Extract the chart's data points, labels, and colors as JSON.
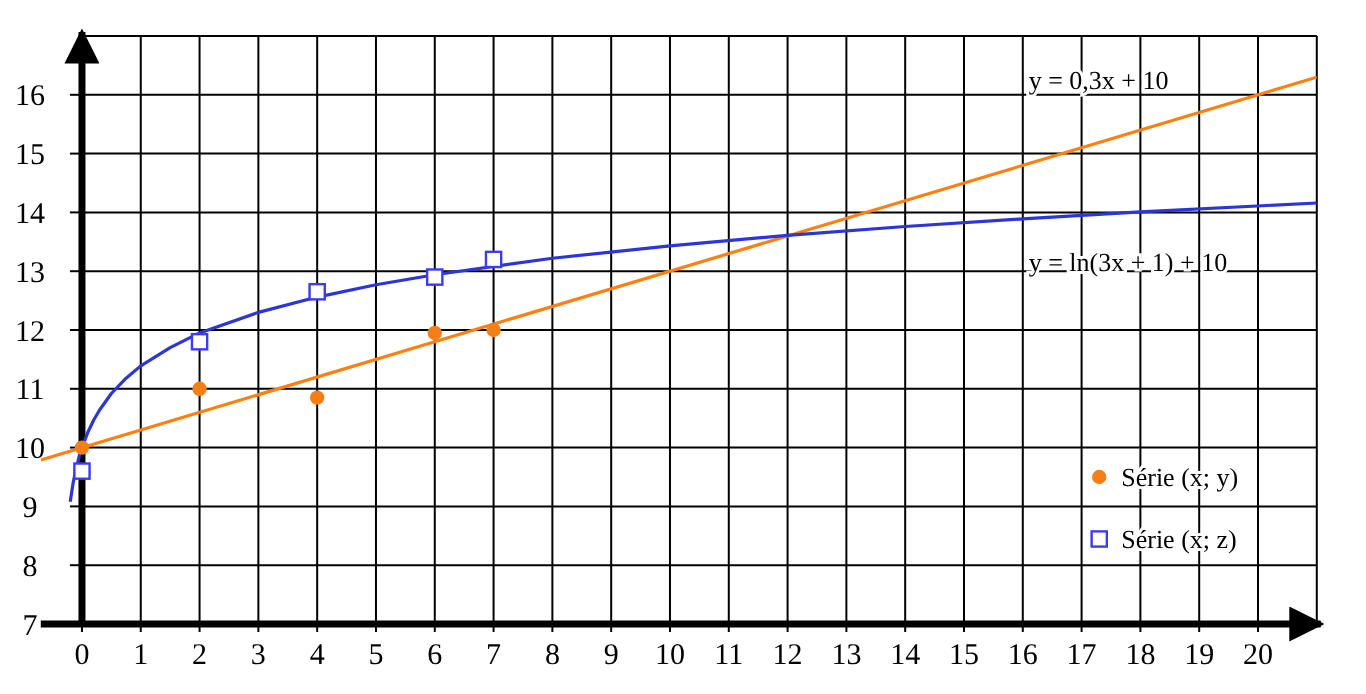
{
  "chart_data": {
    "type": "scatter",
    "xlim": [
      -0.7,
      21
    ],
    "ylim": [
      7,
      17
    ],
    "xticks": [
      0,
      1,
      2,
      3,
      4,
      5,
      6,
      7,
      8,
      9,
      10,
      11,
      12,
      13,
      14,
      15,
      16,
      17,
      18,
      19,
      20
    ],
    "yticks": [
      7,
      8,
      9,
      10,
      11,
      12,
      13,
      14,
      15,
      16
    ],
    "grid": true,
    "legend": "bottom right",
    "series": [
      {
        "type": "line",
        "color": "#ff7f0e",
        "marker": "none",
        "x": [
          -0.7,
          21
        ],
        "values": [
          9.79,
          16.3
        ]
      },
      {
        "type": "line",
        "color": "#2b35d8",
        "marker": "none",
        "x": [
          -0.2,
          -0.15,
          -0.1,
          -0.05,
          0,
          0.1,
          0.2,
          0.3,
          0.5,
          0.75,
          1,
          1.5,
          2,
          3,
          4,
          5,
          6,
          8,
          10,
          12,
          14,
          16,
          18,
          21
        ],
        "values": [
          9.08,
          9.4,
          9.64,
          9.84,
          10,
          10.26,
          10.47,
          10.64,
          10.92,
          11.18,
          11.39,
          11.7,
          11.95,
          12.3,
          12.56,
          12.77,
          12.94,
          13.22,
          13.43,
          13.61,
          13.76,
          13.89,
          14.01,
          14.16
        ]
      },
      {
        "name": "Série (x; y)",
        "color": "#f57f17",
        "marker": "circle",
        "x": [
          0,
          2,
          4,
          6,
          7
        ],
        "values": [
          10,
          11,
          10.85,
          11.95,
          12
        ]
      },
      {
        "name": "Série (x; z)",
        "color": "#3b3bf0",
        "marker": "square",
        "x": [
          0,
          2,
          4,
          6,
          7
        ],
        "values": [
          9.6,
          11.8,
          12.65,
          12.9,
          13.2
        ]
      }
    ],
    "annotations": [
      "y = 0,3x + 10",
      "y = ln(3x + 1) + 10"
    ]
  }
}
